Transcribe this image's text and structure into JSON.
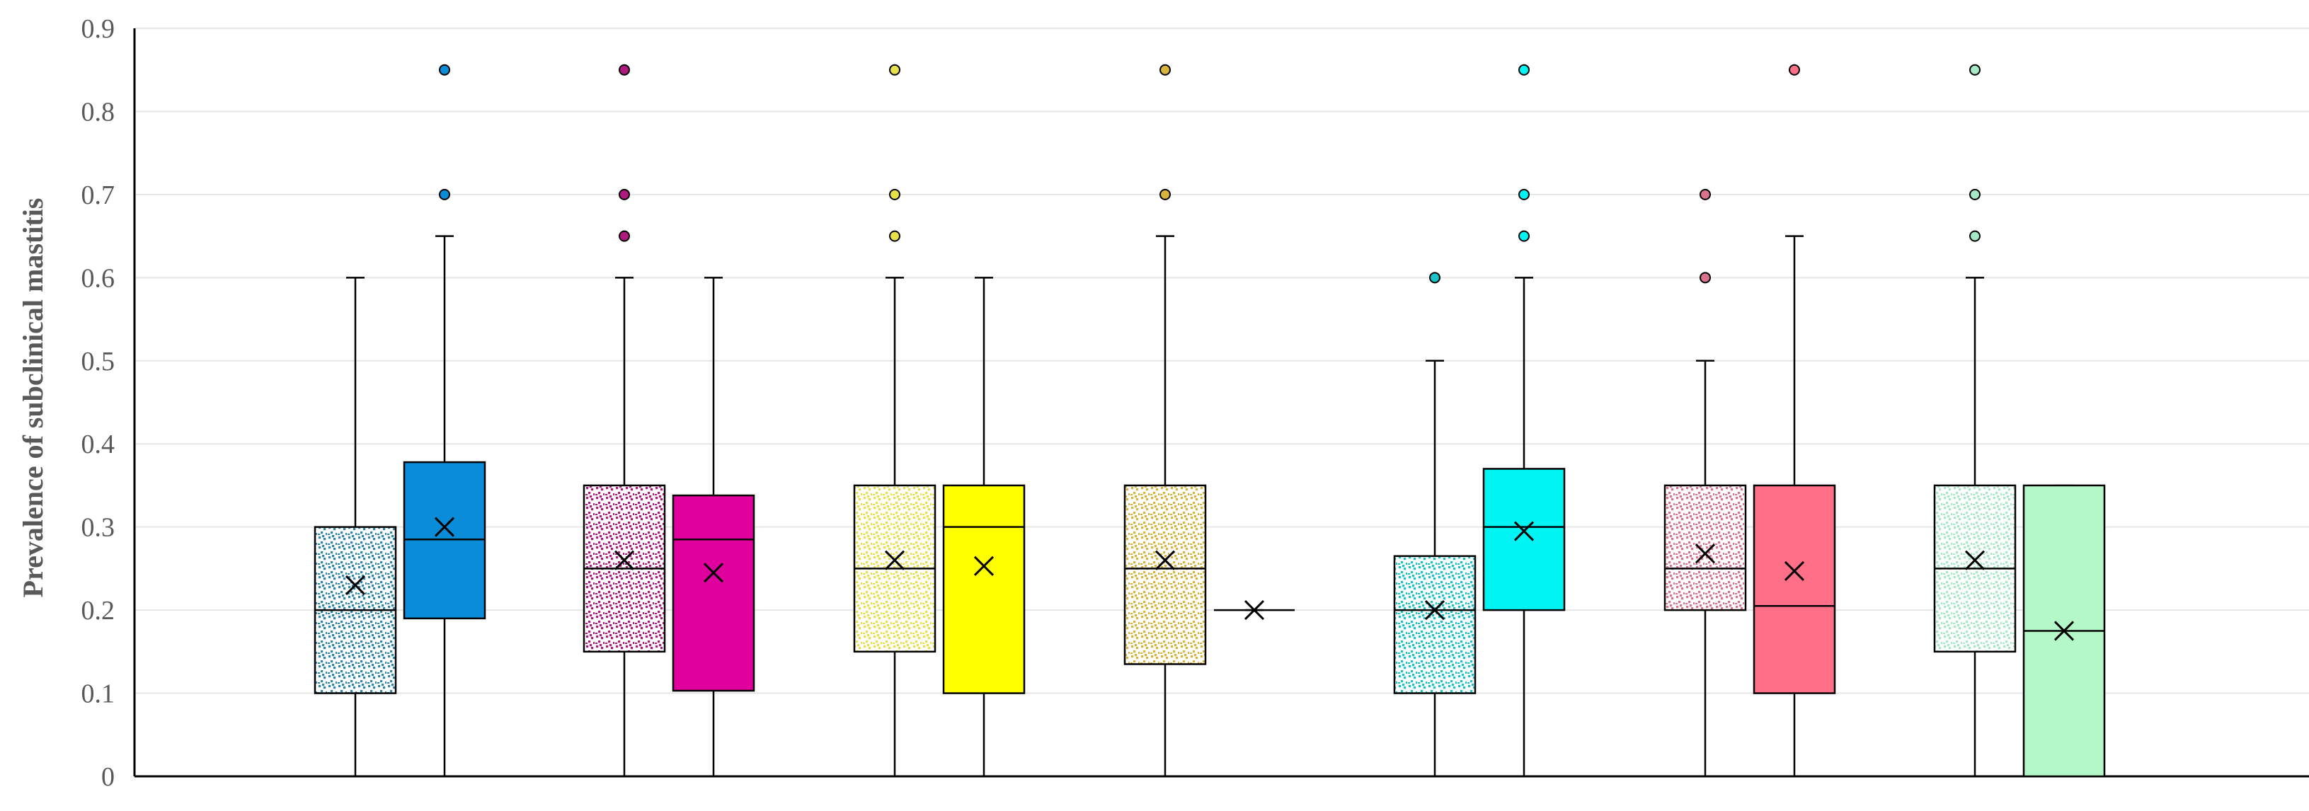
{
  "chart_data": {
    "type": "box",
    "title": "",
    "xlabel": "",
    "ylabel": "Prevalence of subclinical mastitis",
    "ylim": [
      0,
      0.9
    ],
    "yticks": [
      "0",
      "0.1",
      "0.2",
      "0.3",
      "0.4",
      "0.5",
      "0.6",
      "0.7",
      "0.8",
      "0.9"
    ],
    "grid": true,
    "legend": "none",
    "boxes": [
      {
        "min": 0,
        "q1": 0.1,
        "median": 0.2,
        "q3": 0.3,
        "max": 0.6,
        "mean": 0.23,
        "outliers": [],
        "color": "#2E86AB",
        "pattern": "dotted"
      },
      {
        "min": 0,
        "q1": 0.19,
        "median": 0.285,
        "q3": 0.378,
        "max": 0.65,
        "mean": 0.3,
        "outliers": [
          0.7,
          0.85
        ],
        "color": "#0A8CD8",
        "pattern": "solid"
      },
      {
        "min": 0,
        "q1": 0.15,
        "median": 0.25,
        "q3": 0.35,
        "max": 0.6,
        "mean": 0.26,
        "outliers": [
          0.65,
          0.7,
          0.85
        ],
        "color": "#B0197E",
        "pattern": "dotted"
      },
      {
        "min": 0,
        "q1": 0.103,
        "median": 0.285,
        "q3": 0.338,
        "max": 0.6,
        "mean": 0.245,
        "outliers": [],
        "color": "#E0009E",
        "pattern": "solid"
      },
      {
        "min": 0,
        "q1": 0.15,
        "median": 0.25,
        "q3": 0.35,
        "max": 0.6,
        "mean": 0.26,
        "outliers": [
          0.65,
          0.7,
          0.85
        ],
        "color": "#E8E04A",
        "pattern": "dotted"
      },
      {
        "min": 0,
        "q1": 0.1,
        "median": 0.3,
        "q3": 0.35,
        "max": 0.6,
        "mean": 0.253,
        "outliers": [],
        "color": "#FFFF00",
        "pattern": "solid"
      },
      {
        "min": 0,
        "q1": 0.135,
        "median": 0.25,
        "q3": 0.35,
        "max": 0.65,
        "mean": 0.26,
        "outliers": [
          0.7,
          0.85
        ],
        "color": "#D9B43A",
        "pattern": "dotted"
      },
      {
        "min": 0.2,
        "q1": 0.2,
        "median": 0.2,
        "q3": 0.2,
        "max": 0.2,
        "mean": 0.2,
        "outliers": [],
        "color": "#FFC000",
        "pattern": "solid"
      },
      {
        "min": 0,
        "q1": 0.1,
        "median": 0.2,
        "q3": 0.265,
        "max": 0.5,
        "mean": 0.2,
        "outliers": [
          0.6
        ],
        "color": "#19C3C8",
        "pattern": "dotted"
      },
      {
        "min": 0,
        "q1": 0.2,
        "median": 0.3,
        "q3": 0.37,
        "max": 0.6,
        "mean": 0.295,
        "outliers": [
          0.65,
          0.7,
          0.85
        ],
        "color": "#00F4F4",
        "pattern": "solid"
      },
      {
        "min": 0,
        "q1": 0.2,
        "median": 0.25,
        "q3": 0.35,
        "max": 0.5,
        "mean": 0.268,
        "outliers": [
          0.6,
          0.7
        ],
        "color": "#D9728C",
        "pattern": "dotted"
      },
      {
        "min": 0,
        "q1": 0.1,
        "median": 0.205,
        "q3": 0.35,
        "max": 0.65,
        "mean": 0.247,
        "outliers": [
          0.85
        ],
        "color": "#FF7088",
        "pattern": "solid"
      },
      {
        "min": 0,
        "q1": 0.15,
        "median": 0.25,
        "q3": 0.35,
        "max": 0.6,
        "mean": 0.26,
        "outliers": [
          0.65,
          0.7,
          0.85
        ],
        "color": "#A5E8C4",
        "pattern": "dotted"
      },
      {
        "min": 0,
        "q1": 0,
        "median": 0.175,
        "q3": 0.35,
        "max": 0.35,
        "mean": 0.175,
        "outliers": [],
        "color": "#B4F8C8",
        "pattern": "solid"
      }
    ]
  }
}
